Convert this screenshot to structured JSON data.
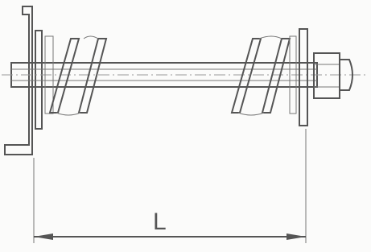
{
  "dimension": {
    "label": "L"
  }
}
